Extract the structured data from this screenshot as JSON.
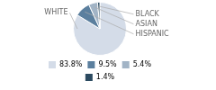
{
  "chart_data": {
    "type": "pie",
    "categories": [
      "WHITE",
      "HISPANIC",
      "ASIAN",
      "BLACK"
    ],
    "values": [
      83.8,
      9.5,
      5.4,
      1.4
    ],
    "value_labels": [
      "83.8%",
      "9.5%",
      "5.4%",
      "1.4%"
    ],
    "colors": [
      "#d4dce8",
      "#5b7f9e",
      "#a2b4c6",
      "#2b4a60"
    ],
    "legend": "bottom"
  }
}
